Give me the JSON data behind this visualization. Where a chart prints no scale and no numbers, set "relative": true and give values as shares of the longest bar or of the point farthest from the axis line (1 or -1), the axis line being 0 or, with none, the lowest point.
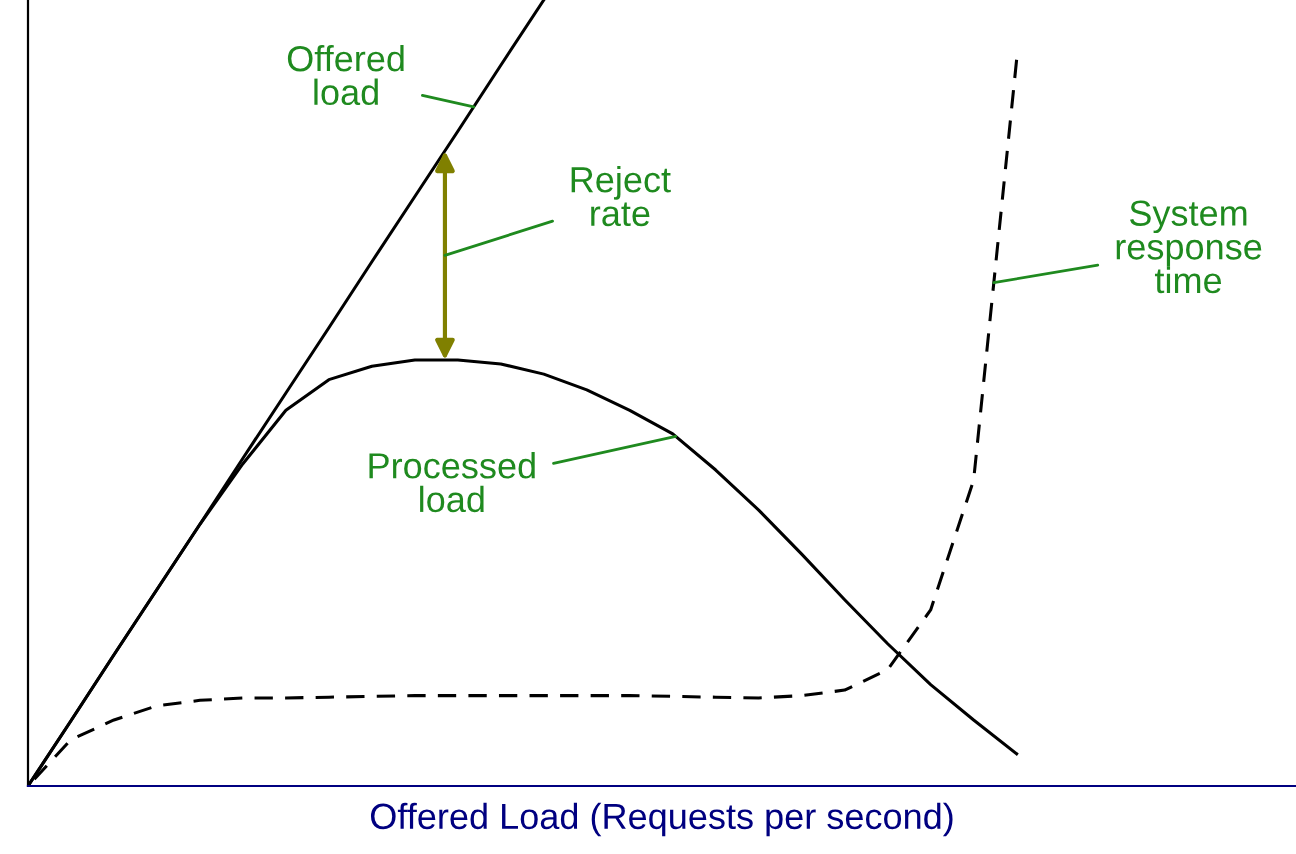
{
  "chart_data": {
    "type": "line",
    "relative": true,
    "xlabel": "Offered Load (Requests per second)",
    "categories": [
      null,
      null,
      null,
      null,
      null,
      null,
      null,
      null,
      null,
      null,
      null,
      null,
      null,
      null,
      null,
      null,
      null,
      null,
      null,
      null,
      null,
      null,
      null,
      null,
      null,
      null,
      null,
      null,
      null,
      null
    ],
    "series": [
      {
        "name": "Offered load",
        "color": "#000000",
        "line_style": "solid",
        "values": [
          0,
          0.083,
          0.167,
          0.25,
          0.333,
          0.417,
          0.5,
          0.583,
          0.667,
          0.75,
          0.833,
          0.917,
          1,
          null,
          null,
          null,
          null,
          null,
          null,
          null,
          null,
          null,
          null,
          null,
          null,
          null,
          null,
          null,
          null,
          null
        ]
      },
      {
        "name": "Processed load",
        "color": "#000000",
        "line_style": "solid",
        "values": [
          0,
          0.083,
          0.167,
          0.25,
          0.333,
          0.41,
          0.478,
          0.517,
          0.534,
          0.542,
          0.542,
          0.537,
          0.524,
          0.504,
          0.478,
          0.448,
          0.402,
          0.351,
          0.295,
          0.237,
          0.181,
          0.129,
          0.084,
          0.041,
          null,
          null,
          null,
          null,
          null,
          null
        ]
      },
      {
        "name": "System response time",
        "color": "#000000",
        "line_style": "dashed",
        "values": [
          0,
          0.059,
          0.084,
          0.102,
          0.109,
          0.112,
          0.112,
          0.113,
          0.114,
          0.115,
          0.115,
          0.115,
          0.115,
          0.115,
          0.115,
          0.114,
          0.113,
          0.112,
          0.115,
          0.122,
          0.148,
          0.224,
          0.389,
          0.924,
          null,
          null,
          null,
          null,
          null,
          null
        ]
      }
    ],
    "annotations": [
      "Reject rate"
    ],
    "legend": false
  }
}
